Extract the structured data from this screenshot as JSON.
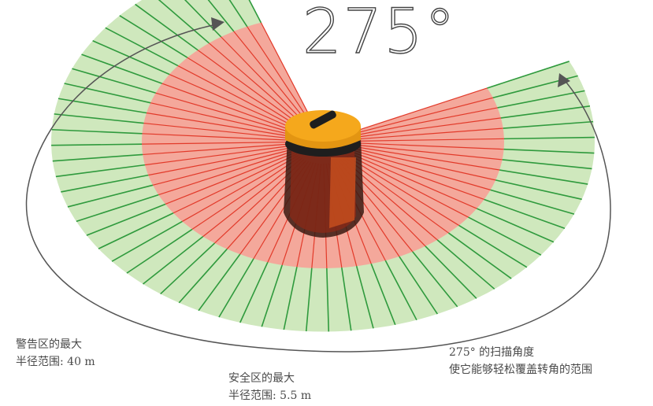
{
  "angle_label": "275°",
  "warning_zone": {
    "line1": "警告区的最大",
    "line2": "半径范围: 40 m"
  },
  "safety_zone": {
    "line1": "安全区的最大",
    "line2": "半径范围: 5.5 m"
  },
  "scan_angle": {
    "line1": "275° 的扫描角度",
    "line2": "使它能够轻松覆盖转角的范围"
  },
  "colors": {
    "warning_fill": "#cfe8bd",
    "warning_line": "#2f9a3d",
    "safety_fill": "#f4a89b",
    "safety_line": "#e23a2a",
    "scanner_body": "#f5a81c",
    "scanner_base": "#1e1e1e",
    "arrow": "#555555"
  }
}
